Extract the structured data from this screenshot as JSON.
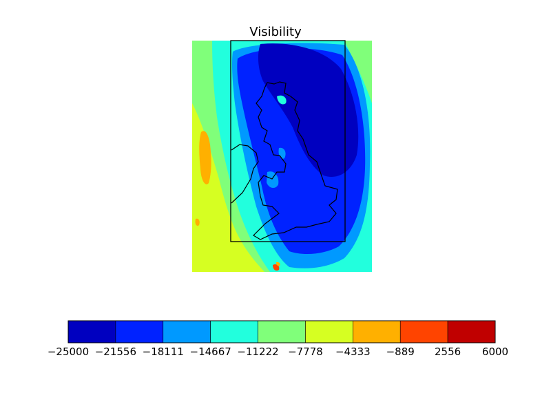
{
  "chart_data": {
    "type": "heatmap",
    "title": "Visibility",
    "xlabel": "",
    "ylabel": "",
    "colorbar": {
      "orientation": "horizontal",
      "placement": "below",
      "levels": [
        -25000,
        -21556,
        -18111,
        -14667,
        -11222,
        -7778,
        -4333,
        -889,
        2556,
        6000
      ],
      "tick_labels": [
        "−25000",
        "−21556",
        "−18111",
        "−14667",
        "−11222",
        "−7778",
        "−4333",
        "−889",
        "2556",
        "6000"
      ],
      "colors": [
        "#0000c0",
        "#0022ff",
        "#0099ff",
        "#22ffdd",
        "#80ff7a",
        "#d6ff22",
        "#ffb000",
        "#ff4400",
        "#c00000"
      ]
    },
    "grid": false,
    "features": [
      "coastline",
      "domain-rectangle"
    ]
  }
}
